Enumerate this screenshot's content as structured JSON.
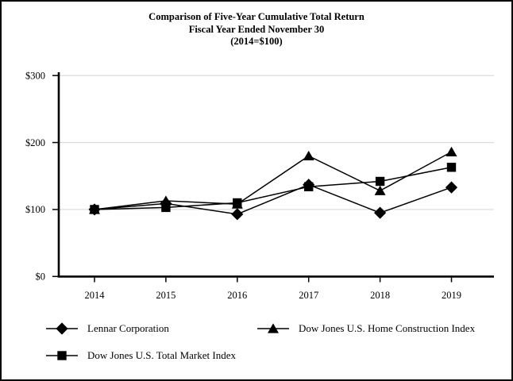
{
  "chart": {
    "title_line1": "Comparison of Five-Year Cumulative Total Return",
    "title_line2": "Fiscal Year Ended November 30",
    "title_line3": "(2014=$100)"
  },
  "chart_data": {
    "type": "line",
    "x_labels": [
      "2014",
      "2015",
      "2016",
      "2017",
      "2018",
      "2019"
    ],
    "y_ticks": [
      {
        "value": 0,
        "label": "$0"
      },
      {
        "value": 100,
        "label": "$100"
      },
      {
        "value": 200,
        "label": "$200"
      },
      {
        "value": 300,
        "label": "$300"
      }
    ],
    "ylim": [
      0,
      300
    ],
    "grid": "horizontal",
    "legend_position": "bottom",
    "line_color": "#000000",
    "grid_color": "#d9d9d9",
    "axis_color": "#000000",
    "series": [
      {
        "name": "Lennar Corporation",
        "marker": "diamond",
        "values": [
          100,
          109,
          93,
          137,
          95,
          133
        ]
      },
      {
        "name": "Dow Jones U.S. Home Construction Index",
        "marker": "triangle",
        "values": [
          100,
          113,
          108,
          180,
          128,
          186
        ]
      },
      {
        "name": "Dow Jones U.S. Total Market Index",
        "marker": "square",
        "values": [
          100,
          103,
          110,
          134,
          142,
          163
        ]
      }
    ]
  },
  "legend": {
    "items": [
      {
        "label": "Lennar Corporation",
        "marker": "diamond"
      },
      {
        "label": "Dow Jones U.S. Home Construction Index",
        "marker": "triangle"
      },
      {
        "label": "Dow Jones U.S. Total Market Index",
        "marker": "square"
      }
    ]
  }
}
